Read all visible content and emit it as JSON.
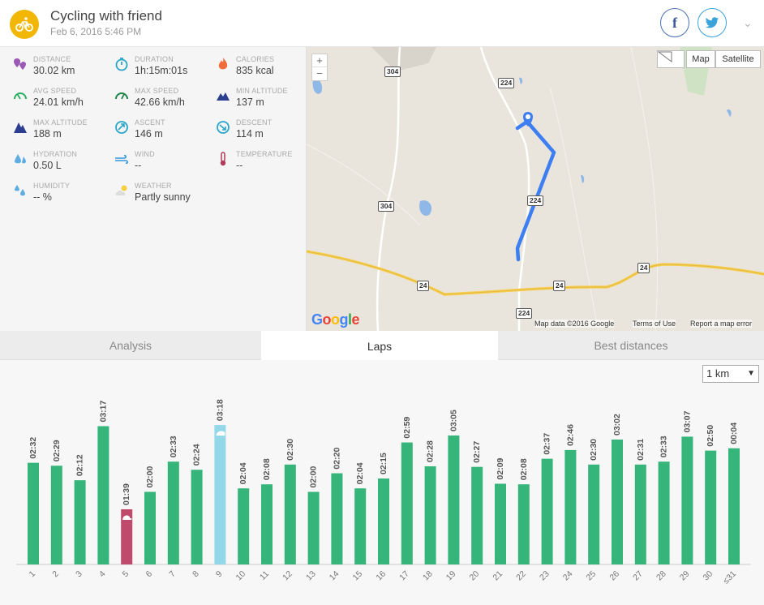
{
  "header": {
    "title": "Cycling with friend",
    "date": "Feb 6, 2016 5:46 PM",
    "facebook_label": "f",
    "chevron": "⌄"
  },
  "stats": [
    {
      "key": "distance",
      "label": "DISTANCE",
      "value": "30.02 km",
      "icon": "distance-icon",
      "color": "#9b59b6"
    },
    {
      "key": "duration",
      "label": "DURATION",
      "value": "1h:15m:01s",
      "icon": "stopwatch-icon",
      "color": "#2aa5c9"
    },
    {
      "key": "calories",
      "label": "CALORIES",
      "value": "835 kcal",
      "icon": "flame-icon",
      "color": "#f26b3a"
    },
    {
      "key": "avg_speed",
      "label": "AVG SPEED",
      "value": "24.01 km/h",
      "icon": "speedometer-icon",
      "color": "#27ae60"
    },
    {
      "key": "max_speed",
      "label": "MAX SPEED",
      "value": "42.66 km/h",
      "icon": "speedometer-max-icon",
      "color": "#1e8449"
    },
    {
      "key": "min_altitude",
      "label": "MIN ALTITUDE",
      "value": "137 m",
      "icon": "mountain-low-icon",
      "color": "#2c3e8f"
    },
    {
      "key": "max_altitude",
      "label": "MAX ALTITUDE",
      "value": "188 m",
      "icon": "mountain-high-icon",
      "color": "#2c3e8f"
    },
    {
      "key": "ascent",
      "label": "ASCENT",
      "value": "146 m",
      "icon": "ascent-icon",
      "color": "#2aa5c9"
    },
    {
      "key": "descent",
      "label": "DESCENT",
      "value": "114 m",
      "icon": "descent-icon",
      "color": "#2aa5c9"
    },
    {
      "key": "hydration",
      "label": "HYDRATION",
      "value": "0.50 L",
      "icon": "water-drops-icon",
      "color": "#5dade2"
    },
    {
      "key": "wind",
      "label": "WIND",
      "value": "--",
      "icon": "wind-icon",
      "color": "#3498db"
    },
    {
      "key": "temperature",
      "label": "TEMPERATURE",
      "value": "--",
      "icon": "thermometer-icon",
      "color": "#b03a5b"
    },
    {
      "key": "humidity",
      "label": "HUMIDITY",
      "value": "-- %",
      "icon": "humidity-icon",
      "color": "#5dade2"
    },
    {
      "key": "weather",
      "label": "WEATHER",
      "value": "Partly sunny",
      "icon": "partly-sunny-icon",
      "color": "#f4d03f"
    }
  ],
  "map": {
    "zoom_in": "+",
    "zoom_out": "−",
    "map_type_map": "Map",
    "map_type_satellite": "Satellite",
    "logo": "Google",
    "attribution": "Map data ©2016 Google",
    "terms": "Terms of Use",
    "report": "Report a map error",
    "road_labels": [
      "304",
      "304",
      "224",
      "224",
      "224",
      "24",
      "24",
      "24"
    ]
  },
  "tabs": [
    {
      "label": "Analysis",
      "active": false
    },
    {
      "label": "Laps",
      "active": true
    },
    {
      "label": "Best distances",
      "active": false
    }
  ],
  "lap_unit_select": {
    "value": "1 km",
    "arrow": "▼"
  },
  "colors": {
    "bar": "#35b57a",
    "bar_slowest": "#bf4a6b",
    "bar_fastest": "#93d8e8",
    "accent": "#f2b705"
  },
  "chart_data": {
    "type": "bar",
    "categories": [
      "1",
      "2",
      "3",
      "4",
      "5",
      "6",
      "7",
      "8",
      "9",
      "10",
      "11",
      "12",
      "13",
      "14",
      "15",
      "16",
      "17",
      "18",
      "19",
      "20",
      "21",
      "22",
      "23",
      "24",
      "25",
      "26",
      "27",
      "28",
      "29",
      "30",
      "≤31"
    ],
    "labels": [
      "02:32",
      "02:29",
      "02:12",
      "03:17",
      "01:39",
      "02:00",
      "02:33",
      "02:24",
      "03:18",
      "02:04",
      "02:08",
      "02:30",
      "02:00",
      "02:20",
      "02:04",
      "02:15",
      "02:59",
      "02:28",
      "03:05",
      "02:27",
      "02:09",
      "02:08",
      "02:37",
      "02:46",
      "02:30",
      "03:02",
      "02:31",
      "02:33",
      "03:07",
      "02:50",
      "00:04"
    ],
    "values": [
      24.0,
      23.5,
      21.0,
      30.3,
      16.0,
      19.0,
      24.2,
      22.8,
      30.5,
      19.6,
      20.3,
      23.7,
      19.0,
      22.2,
      19.6,
      21.3,
      27.5,
      23.4,
      28.7,
      23.3,
      20.4,
      20.3,
      24.7,
      26.2,
      23.7,
      28.0,
      23.7,
      24.2,
      28.5,
      26.1,
      26.5
    ],
    "highlight": {
      "slowest_index": 4,
      "fastest_index": 8
    },
    "ylabel": "",
    "ylim": [
      0,
      34
    ]
  }
}
